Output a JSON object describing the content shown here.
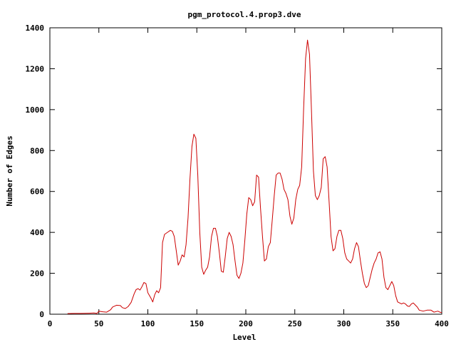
{
  "chart_data": {
    "type": "line",
    "title": "pgm_protocol.4.prop3.dve",
    "xlabel": "Level",
    "ylabel": "Number of Edges",
    "xlim": [
      0,
      400
    ],
    "ylim": [
      0,
      1400
    ],
    "xticks": [
      "0",
      "50",
      "100",
      "150",
      "200",
      "250",
      "300",
      "350",
      "400"
    ],
    "yticks": [
      "0",
      "200",
      "400",
      "600",
      "800",
      "1000",
      "1200",
      "1400"
    ],
    "grid": false,
    "legend": "none",
    "series": [
      {
        "color": "#cc0000",
        "points": [
          [
            18,
            3
          ],
          [
            25,
            4
          ],
          [
            32,
            4
          ],
          [
            40,
            5
          ],
          [
            45,
            6
          ],
          [
            48,
            4
          ],
          [
            50,
            15
          ],
          [
            54,
            12
          ],
          [
            58,
            10
          ],
          [
            62,
            22
          ],
          [
            64,
            35
          ],
          [
            68,
            44
          ],
          [
            72,
            42
          ],
          [
            74,
            32
          ],
          [
            77,
            28
          ],
          [
            80,
            38
          ],
          [
            83,
            58
          ],
          [
            86,
            100
          ],
          [
            88,
            120
          ],
          [
            90,
            125
          ],
          [
            92,
            118
          ],
          [
            94,
            135
          ],
          [
            96,
            155
          ],
          [
            98,
            150
          ],
          [
            100,
            105
          ],
          [
            103,
            80
          ],
          [
            105,
            60
          ],
          [
            107,
            95
          ],
          [
            109,
            115
          ],
          [
            111,
            105
          ],
          [
            113,
            130
          ],
          [
            115,
            350
          ],
          [
            117,
            390
          ],
          [
            120,
            400
          ],
          [
            123,
            410
          ],
          [
            125,
            405
          ],
          [
            127,
            380
          ],
          [
            129,
            310
          ],
          [
            131,
            240
          ],
          [
            133,
            260
          ],
          [
            135,
            290
          ],
          [
            137,
            280
          ],
          [
            139,
            340
          ],
          [
            141,
            470
          ],
          [
            143,
            660
          ],
          [
            145,
            820
          ],
          [
            147,
            880
          ],
          [
            149,
            860
          ],
          [
            151,
            680
          ],
          [
            153,
            400
          ],
          [
            155,
            230
          ],
          [
            157,
            195
          ],
          [
            159,
            215
          ],
          [
            161,
            230
          ],
          [
            163,
            280
          ],
          [
            165,
            380
          ],
          [
            167,
            420
          ],
          [
            169,
            420
          ],
          [
            171,
            380
          ],
          [
            173,
            300
          ],
          [
            175,
            210
          ],
          [
            177,
            205
          ],
          [
            179,
            280
          ],
          [
            181,
            370
          ],
          [
            183,
            400
          ],
          [
            185,
            380
          ],
          [
            187,
            340
          ],
          [
            189,
            260
          ],
          [
            191,
            190
          ],
          [
            193,
            175
          ],
          [
            195,
            200
          ],
          [
            197,
            250
          ],
          [
            199,
            360
          ],
          [
            201,
            490
          ],
          [
            203,
            570
          ],
          [
            205,
            560
          ],
          [
            207,
            530
          ],
          [
            209,
            550
          ],
          [
            211,
            680
          ],
          [
            213,
            670
          ],
          [
            215,
            520
          ],
          [
            217,
            380
          ],
          [
            219,
            260
          ],
          [
            221,
            270
          ],
          [
            223,
            330
          ],
          [
            225,
            350
          ],
          [
            227,
            460
          ],
          [
            229,
            580
          ],
          [
            231,
            680
          ],
          [
            233,
            690
          ],
          [
            235,
            690
          ],
          [
            237,
            660
          ],
          [
            239,
            610
          ],
          [
            241,
            590
          ],
          [
            243,
            560
          ],
          [
            245,
            480
          ],
          [
            247,
            440
          ],
          [
            249,
            470
          ],
          [
            251,
            560
          ],
          [
            253,
            610
          ],
          [
            255,
            630
          ],
          [
            257,
            720
          ],
          [
            259,
            1000
          ],
          [
            261,
            1250
          ],
          [
            263,
            1340
          ],
          [
            265,
            1270
          ],
          [
            267,
            1000
          ],
          [
            269,
            700
          ],
          [
            271,
            580
          ],
          [
            273,
            560
          ],
          [
            275,
            580
          ],
          [
            277,
            620
          ],
          [
            279,
            760
          ],
          [
            281,
            770
          ],
          [
            283,
            720
          ],
          [
            285,
            550
          ],
          [
            287,
            380
          ],
          [
            289,
            310
          ],
          [
            291,
            320
          ],
          [
            293,
            380
          ],
          [
            295,
            410
          ],
          [
            297,
            410
          ],
          [
            299,
            370
          ],
          [
            301,
            300
          ],
          [
            303,
            270
          ],
          [
            305,
            260
          ],
          [
            307,
            250
          ],
          [
            309,
            270
          ],
          [
            311,
            320
          ],
          [
            313,
            350
          ],
          [
            315,
            330
          ],
          [
            317,
            260
          ],
          [
            319,
            200
          ],
          [
            321,
            150
          ],
          [
            323,
            130
          ],
          [
            325,
            140
          ],
          [
            327,
            180
          ],
          [
            329,
            220
          ],
          [
            331,
            250
          ],
          [
            333,
            270
          ],
          [
            335,
            300
          ],
          [
            337,
            305
          ],
          [
            339,
            270
          ],
          [
            341,
            180
          ],
          [
            343,
            130
          ],
          [
            345,
            120
          ],
          [
            347,
            140
          ],
          [
            349,
            160
          ],
          [
            351,
            140
          ],
          [
            353,
            90
          ],
          [
            355,
            60
          ],
          [
            357,
            55
          ],
          [
            359,
            50
          ],
          [
            361,
            55
          ],
          [
            363,
            50
          ],
          [
            365,
            40
          ],
          [
            367,
            38
          ],
          [
            369,
            50
          ],
          [
            371,
            55
          ],
          [
            373,
            45
          ],
          [
            375,
            35
          ],
          [
            377,
            20
          ],
          [
            381,
            15
          ],
          [
            385,
            20
          ],
          [
            389,
            20
          ],
          [
            392,
            10
          ],
          [
            396,
            15
          ],
          [
            398,
            10
          ],
          [
            400,
            8
          ]
        ]
      }
    ]
  }
}
